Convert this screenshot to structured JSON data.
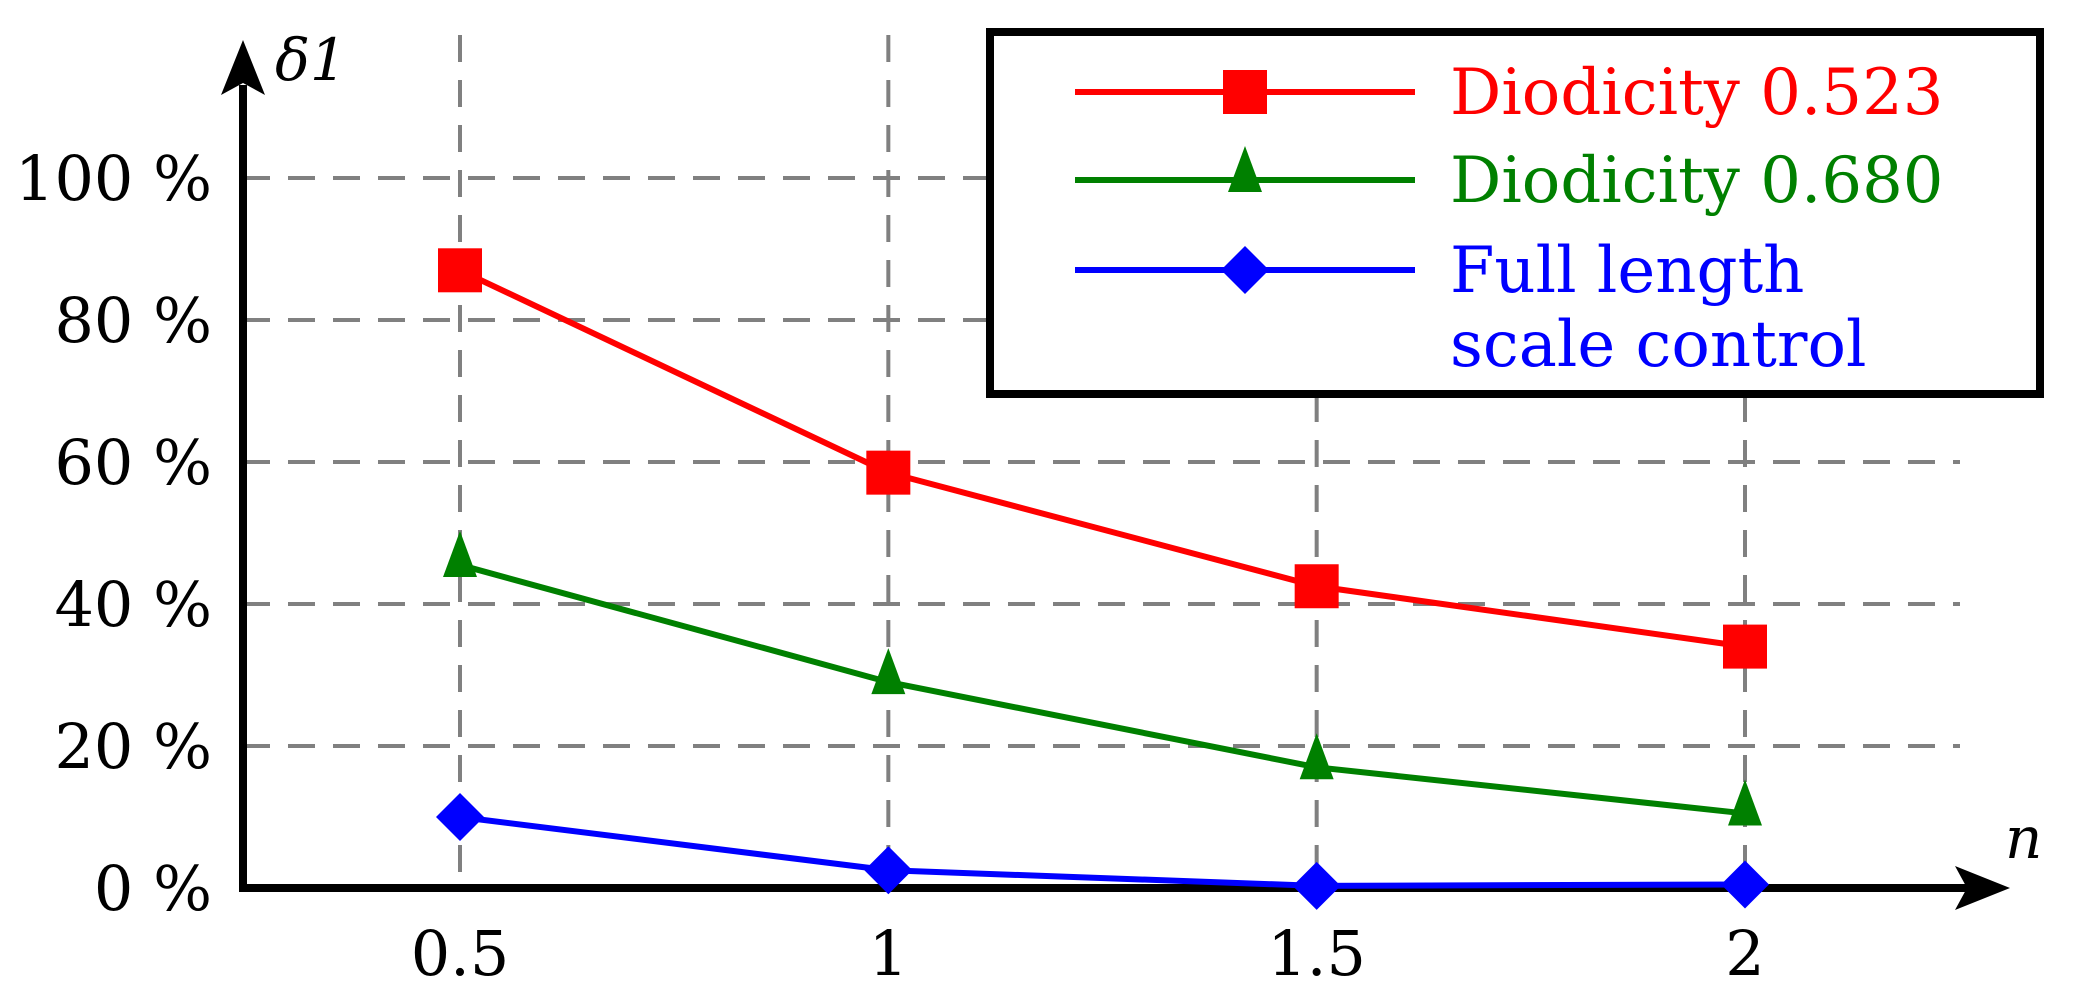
{
  "chart_data": {
    "type": "line",
    "title": "",
    "xlabel": "n",
    "ylabel": "δ1",
    "x": [
      0.5,
      1,
      1.5,
      2
    ],
    "x_ticks": [
      "0.5",
      "1",
      "1.5",
      "2"
    ],
    "xlim": [
      0.25,
      2.27
    ],
    "ylim": [
      0,
      108
    ],
    "y_ticks": [
      0,
      20,
      40,
      60,
      80,
      100
    ],
    "y_tick_labels": [
      "0 %",
      "20 %",
      "40 %",
      "60 %",
      "80 %",
      "100 %"
    ],
    "grid": true,
    "legend_position": "top-right",
    "series": [
      {
        "name": "Diodicity 0.523",
        "legend_lines": [
          "Diodicity 0.523"
        ],
        "color": "#ff0000",
        "marker": "square",
        "values": [
          87,
          58.5,
          42.5,
          34
        ]
      },
      {
        "name": "Diodicity 0.680",
        "legend_lines": [
          "Diodicity 0.680"
        ],
        "color": "#008000",
        "marker": "triangle",
        "values": [
          45.5,
          29,
          17,
          10.5
        ]
      },
      {
        "name": "Full length scale control",
        "legend_lines": [
          "Full length",
          "scale control"
        ],
        "color": "#0000ff",
        "marker": "diamond",
        "values": [
          10,
          2.5,
          0.3,
          0.5
        ]
      }
    ]
  }
}
